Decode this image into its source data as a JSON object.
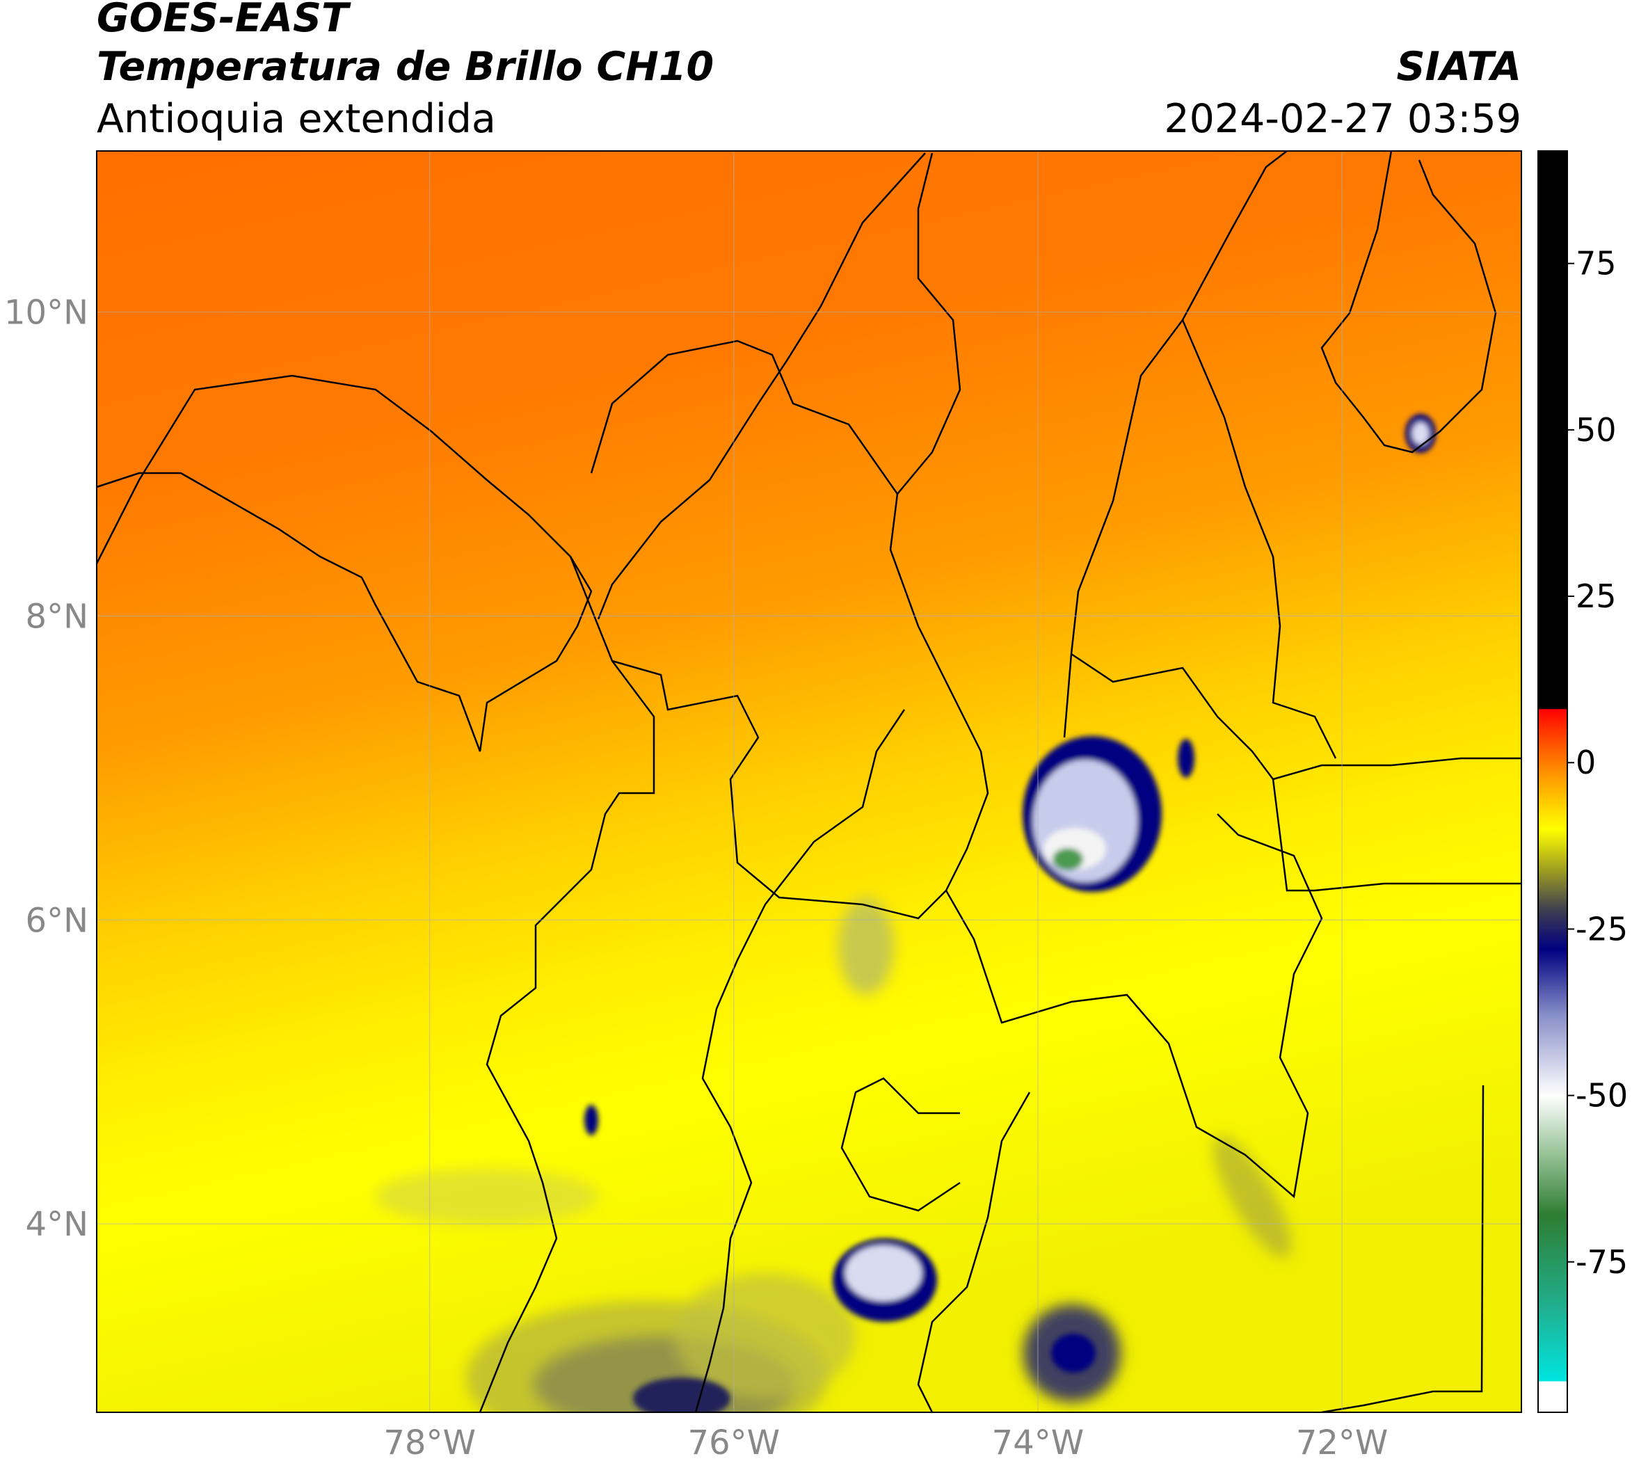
{
  "chart_data": {
    "type": "map",
    "title": "GOES-EAST",
    "subtitle": "Temperatura de Brillo CH10",
    "region": "Antioquia extendida",
    "source": "SIATA",
    "datetime": "2024-02-27 03:59",
    "xlim": [
      -80.19,
      -70.82
    ],
    "ylim": [
      2.76,
      11.06
    ],
    "xticks": [
      {
        "value": -78,
        "label": "78°W"
      },
      {
        "value": -76,
        "label": "76°W"
      },
      {
        "value": -74,
        "label": "74°W"
      },
      {
        "value": -72,
        "label": "72°W"
      }
    ],
    "yticks": [
      {
        "value": 4,
        "label": "4°N"
      },
      {
        "value": 6,
        "label": "6°N"
      },
      {
        "value": 8,
        "label": "8°N"
      },
      {
        "value": 10,
        "label": "10°N"
      }
    ],
    "grid": true,
    "colorbar_lim": [
      -97.6,
      91.9
    ],
    "colorbar_ticks": [
      75,
      50,
      25,
      0,
      -25,
      -50,
      -75
    ],
    "colormap": [
      {
        "value": -97.6,
        "color": "#ffffff"
      },
      {
        "value": -93,
        "color": "#ffffff"
      },
      {
        "value": -92.9,
        "color": "#00e5e0"
      },
      {
        "value": -82,
        "color": "#20b090"
      },
      {
        "value": -68,
        "color": "#2e7d32"
      },
      {
        "value": -58,
        "color": "#a0c8a0"
      },
      {
        "value": -50,
        "color": "#ffffff"
      },
      {
        "value": -38,
        "color": "#8890c8"
      },
      {
        "value": -28,
        "color": "#000080"
      },
      {
        "value": -22,
        "color": "#404050"
      },
      {
        "value": -16,
        "color": "#a0a020"
      },
      {
        "value": -10,
        "color": "#ffff00"
      },
      {
        "value": -2,
        "color": "#ff9900"
      },
      {
        "value": 5,
        "color": "#ff3300"
      },
      {
        "value": 8,
        "color": "#ff0000"
      },
      {
        "value": 8.1,
        "color": "#000000"
      },
      {
        "value": 91.9,
        "color": "#000000"
      }
    ]
  }
}
